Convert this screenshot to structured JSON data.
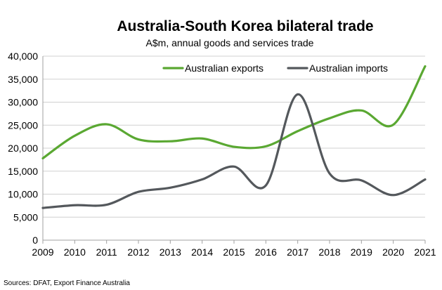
{
  "chart_data": {
    "type": "line",
    "title": "Australia-South Korea bilateral trade",
    "subtitle": "A$m, annual goods and services trade",
    "source": "Sources: DFAT, Export Finance Australia",
    "x": [
      2009,
      2010,
      2011,
      2012,
      2013,
      2014,
      2015,
      2016,
      2017,
      2018,
      2019,
      2020,
      2021
    ],
    "ylim": [
      0,
      40000
    ],
    "yticks": [
      0,
      5000,
      10000,
      15000,
      20000,
      25000,
      30000,
      35000,
      40000
    ],
    "ytick_labels": [
      "0",
      "5,000",
      "10,000",
      "15,000",
      "20,000",
      "25,000",
      "30,000",
      "35,000",
      "40,000"
    ],
    "grid": "horizontal",
    "legend": "top-right",
    "smooth": true,
    "series": [
      {
        "name": "Australian exports",
        "color": "#5aa832",
        "values": [
          17800,
          22700,
          25200,
          21900,
          21500,
          22100,
          20300,
          20400,
          23700,
          26500,
          28200,
          25100,
          37800
        ]
      },
      {
        "name": "Australian imports",
        "color": "#54585c",
        "values": [
          7000,
          7600,
          7700,
          10500,
          11400,
          13200,
          16000,
          11900,
          31700,
          14500,
          13000,
          9800,
          13200
        ]
      }
    ]
  }
}
